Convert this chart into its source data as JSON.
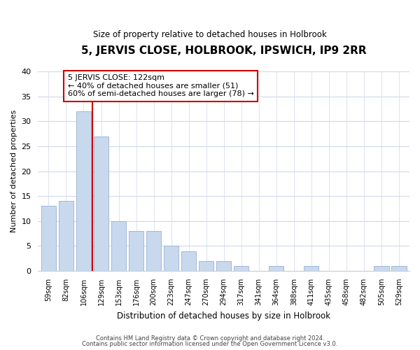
{
  "title": "5, JERVIS CLOSE, HOLBROOK, IPSWICH, IP9 2RR",
  "subtitle": "Size of property relative to detached houses in Holbrook",
  "xlabel": "Distribution of detached houses by size in Holbrook",
  "ylabel": "Number of detached properties",
  "bin_labels": [
    "59sqm",
    "82sqm",
    "106sqm",
    "129sqm",
    "153sqm",
    "176sqm",
    "200sqm",
    "223sqm",
    "247sqm",
    "270sqm",
    "294sqm",
    "317sqm",
    "341sqm",
    "364sqm",
    "388sqm",
    "411sqm",
    "435sqm",
    "458sqm",
    "482sqm",
    "505sqm",
    "529sqm"
  ],
  "bar_heights": [
    13,
    14,
    32,
    27,
    10,
    8,
    8,
    5,
    4,
    2,
    2,
    1,
    0,
    1,
    0,
    1,
    0,
    0,
    0,
    1,
    1
  ],
  "bar_color": "#c9d9ed",
  "bar_edge_color": "#a0b8d8",
  "ref_line_color": "#cc0000",
  "ylim": [
    0,
    40
  ],
  "yticks": [
    0,
    5,
    10,
    15,
    20,
    25,
    30,
    35,
    40
  ],
  "annotation_title": "5 JERVIS CLOSE: 122sqm",
  "annotation_line1": "← 40% of detached houses are smaller (51)",
  "annotation_line2": "60% of semi-detached houses are larger (78) →",
  "annotation_box_color": "#ffffff",
  "annotation_box_edge": "#cc0000",
  "footer_line1": "Contains HM Land Registry data © Crown copyright and database right 2024.",
  "footer_line2": "Contains public sector information licensed under the Open Government Licence v3.0.",
  "background_color": "#ffffff",
  "grid_color": "#d0d8e8"
}
